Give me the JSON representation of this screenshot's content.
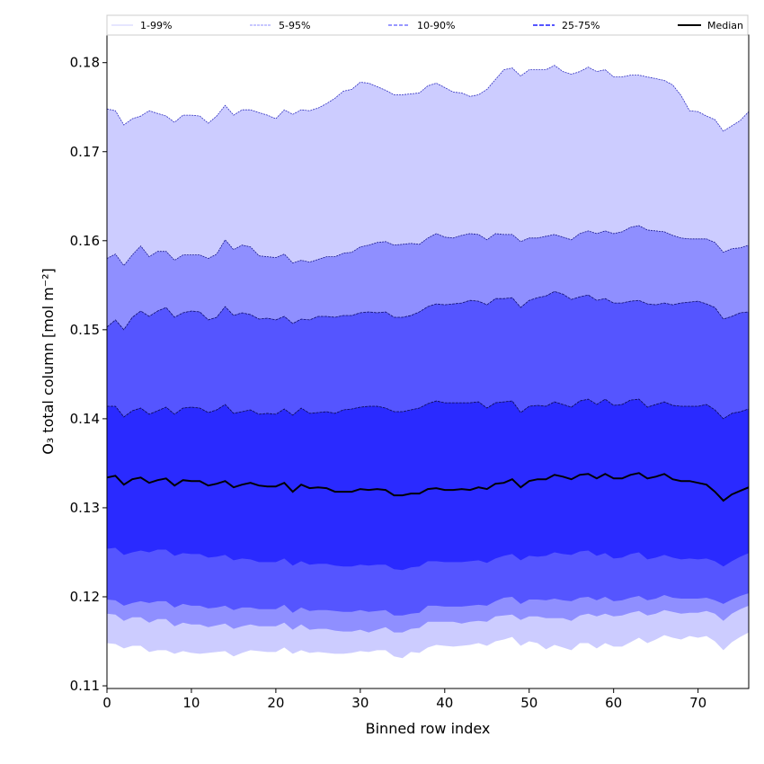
{
  "chart_data": {
    "type": "area",
    "xlabel": "Binned row index",
    "ylabel": "O₃ total column [mol m⁻²]",
    "xlim": [
      0,
      76
    ],
    "ylim": [
      0.1097,
      0.1831
    ],
    "xticks": [
      0,
      10,
      20,
      30,
      40,
      50,
      60,
      70
    ],
    "yticks": [
      0.11,
      0.12,
      0.13,
      0.14,
      0.15,
      0.16,
      0.17,
      0.18
    ],
    "ytick_labels": [
      "0.11",
      "0.12",
      "0.13",
      "0.14",
      "0.15",
      "0.16",
      "0.17",
      "0.18"
    ],
    "legend_position": "top",
    "legend": [
      "1-99%",
      "5-95%",
      "10-90%",
      "25-75%",
      "Median"
    ],
    "colors": {
      "band_1_99": "#ccccff",
      "band_5_95": "#8f8fff",
      "band_10_90": "#5555ff",
      "band_25_75": "#2a2aff",
      "median": "#000000",
      "edge": "#2020a0"
    },
    "percentiles": {
      "p1": [
        0.1148,
        0.1147,
        0.1142,
        0.1145,
        0.1145,
        0.1138,
        0.114,
        0.114,
        0.1136,
        0.1139,
        0.1137,
        0.1136,
        0.1137,
        0.1138,
        0.1139,
        0.1133,
        0.1137,
        0.114,
        0.1139,
        0.1138,
        0.1138,
        0.1143,
        0.1136,
        0.114,
        0.1137,
        0.1138,
        0.1137,
        0.1136,
        0.1136,
        0.1137,
        0.1139,
        0.1138,
        0.114,
        0.114,
        0.1133,
        0.1131,
        0.1138,
        0.1137,
        0.1143,
        0.1146,
        0.1145,
        0.1144,
        0.1145,
        0.1146,
        0.1148,
        0.1145,
        0.115,
        0.1152,
        0.1155,
        0.1145,
        0.115,
        0.1148,
        0.1141,
        0.1146,
        0.1143,
        0.114,
        0.1148,
        0.1148,
        0.1142,
        0.1148,
        0.1144,
        0.1144,
        0.1149,
        0.1154,
        0.1148,
        0.1152,
        0.1157,
        0.1154,
        0.1152,
        0.1156,
        0.1154,
        0.1156,
        0.115,
        0.114,
        0.1149,
        0.1155,
        0.116
      ],
      "p5": [
        0.1181,
        0.118,
        0.1173,
        0.1177,
        0.1177,
        0.1171,
        0.1175,
        0.1175,
        0.1167,
        0.1171,
        0.1169,
        0.1169,
        0.1166,
        0.1168,
        0.117,
        0.1164,
        0.1167,
        0.1169,
        0.1167,
        0.1167,
        0.1167,
        0.1171,
        0.1163,
        0.1169,
        0.1163,
        0.1164,
        0.1164,
        0.1162,
        0.1161,
        0.1161,
        0.1163,
        0.116,
        0.1163,
        0.1166,
        0.116,
        0.116,
        0.1164,
        0.1165,
        0.1172,
        0.1172,
        0.1172,
        0.1172,
        0.117,
        0.1172,
        0.1173,
        0.1172,
        0.1178,
        0.1179,
        0.118,
        0.1174,
        0.1178,
        0.1178,
        0.1176,
        0.1176,
        0.1176,
        0.1173,
        0.1179,
        0.1181,
        0.1178,
        0.1181,
        0.1178,
        0.1179,
        0.1182,
        0.1184,
        0.1179,
        0.1181,
        0.1185,
        0.1183,
        0.1181,
        0.1182,
        0.1182,
        0.1184,
        0.1181,
        0.1173,
        0.1181,
        0.1186,
        0.119
      ],
      "p10": [
        0.1197,
        0.1196,
        0.119,
        0.1193,
        0.1195,
        0.1193,
        0.1195,
        0.1195,
        0.1188,
        0.1192,
        0.119,
        0.119,
        0.1187,
        0.1188,
        0.119,
        0.1185,
        0.1188,
        0.1188,
        0.1186,
        0.1186,
        0.1186,
        0.1191,
        0.1182,
        0.1188,
        0.1184,
        0.1185,
        0.1185,
        0.1184,
        0.1183,
        0.1183,
        0.1185,
        0.1183,
        0.1184,
        0.1185,
        0.1179,
        0.1179,
        0.1181,
        0.1182,
        0.119,
        0.119,
        0.1189,
        0.1189,
        0.1189,
        0.119,
        0.1191,
        0.119,
        0.1195,
        0.1199,
        0.12,
        0.1192,
        0.1197,
        0.1197,
        0.1196,
        0.1198,
        0.1196,
        0.1195,
        0.1199,
        0.12,
        0.1196,
        0.12,
        0.1195,
        0.1196,
        0.1199,
        0.1201,
        0.1196,
        0.1198,
        0.1202,
        0.1199,
        0.1198,
        0.1198,
        0.1198,
        0.1199,
        0.1196,
        0.1192,
        0.1197,
        0.1201,
        0.1204
      ],
      "p25": [
        0.1254,
        0.1255,
        0.1247,
        0.125,
        0.1252,
        0.125,
        0.1253,
        0.1253,
        0.1246,
        0.1249,
        0.1248,
        0.1248,
        0.1244,
        0.1245,
        0.1247,
        0.1241,
        0.1243,
        0.1242,
        0.1239,
        0.1239,
        0.1239,
        0.1243,
        0.1235,
        0.124,
        0.1236,
        0.1237,
        0.1237,
        0.1235,
        0.1234,
        0.1234,
        0.1236,
        0.1235,
        0.1236,
        0.1236,
        0.1231,
        0.123,
        0.1233,
        0.1234,
        0.124,
        0.124,
        0.1239,
        0.1239,
        0.1239,
        0.124,
        0.1241,
        0.1238,
        0.1243,
        0.1246,
        0.1248,
        0.1241,
        0.1246,
        0.1245,
        0.1246,
        0.125,
        0.1248,
        0.1247,
        0.1251,
        0.1252,
        0.1246,
        0.1249,
        0.1243,
        0.1244,
        0.1248,
        0.125,
        0.1242,
        0.1244,
        0.1247,
        0.1244,
        0.1242,
        0.1243,
        0.1242,
        0.1243,
        0.124,
        0.1234,
        0.124,
        0.1245,
        0.1249
      ],
      "p50": [
        0.1334,
        0.1336,
        0.1326,
        0.1332,
        0.1334,
        0.1328,
        0.1331,
        0.1333,
        0.1325,
        0.1331,
        0.133,
        0.133,
        0.1325,
        0.1327,
        0.133,
        0.1323,
        0.1326,
        0.1328,
        0.1325,
        0.1324,
        0.1324,
        0.1328,
        0.1318,
        0.1326,
        0.1322,
        0.1323,
        0.1322,
        0.1318,
        0.1318,
        0.1318,
        0.1321,
        0.132,
        0.1321,
        0.132,
        0.1314,
        0.1314,
        0.1316,
        0.1316,
        0.1321,
        0.1322,
        0.132,
        0.132,
        0.1321,
        0.132,
        0.1323,
        0.1321,
        0.1327,
        0.1328,
        0.1332,
        0.1323,
        0.133,
        0.1332,
        0.1332,
        0.1337,
        0.1335,
        0.1332,
        0.1337,
        0.1338,
        0.1333,
        0.1338,
        0.1333,
        0.1333,
        0.1337,
        0.1339,
        0.1333,
        0.1335,
        0.1338,
        0.1332,
        0.133,
        0.133,
        0.1328,
        0.1326,
        0.1318,
        0.1308,
        0.1315,
        0.1319,
        0.1323
      ],
      "p75": [
        0.1414,
        0.1414,
        0.1402,
        0.1409,
        0.1412,
        0.1405,
        0.1409,
        0.1413,
        0.1405,
        0.1412,
        0.1413,
        0.1412,
        0.1407,
        0.141,
        0.1416,
        0.1406,
        0.1408,
        0.141,
        0.1405,
        0.1406,
        0.1405,
        0.1411,
        0.1404,
        0.1412,
        0.1406,
        0.1407,
        0.1408,
        0.1406,
        0.141,
        0.1411,
        0.1413,
        0.1414,
        0.1414,
        0.1412,
        0.1408,
        0.1408,
        0.141,
        0.1412,
        0.1417,
        0.142,
        0.1418,
        0.1418,
        0.1418,
        0.1418,
        0.1419,
        0.1412,
        0.1418,
        0.1419,
        0.142,
        0.1407,
        0.1414,
        0.1415,
        0.1414,
        0.1419,
        0.1416,
        0.1413,
        0.142,
        0.1422,
        0.1416,
        0.1422,
        0.1415,
        0.1416,
        0.1421,
        0.1422,
        0.1413,
        0.1416,
        0.1419,
        0.1415,
        0.1414,
        0.1414,
        0.1414,
        0.1416,
        0.141,
        0.14,
        0.1406,
        0.1408,
        0.1411
      ],
      "p90": [
        0.1503,
        0.1511,
        0.15,
        0.1514,
        0.1521,
        0.1515,
        0.1521,
        0.1525,
        0.1514,
        0.1519,
        0.1521,
        0.152,
        0.1511,
        0.1514,
        0.1526,
        0.1516,
        0.1519,
        0.1517,
        0.1512,
        0.1513,
        0.1511,
        0.1515,
        0.1507,
        0.1512,
        0.1511,
        0.1515,
        0.1515,
        0.1514,
        0.1516,
        0.1516,
        0.1519,
        0.152,
        0.1519,
        0.152,
        0.1514,
        0.1514,
        0.1516,
        0.152,
        0.1526,
        0.1529,
        0.1528,
        0.1529,
        0.153,
        0.1533,
        0.1532,
        0.1528,
        0.1535,
        0.1535,
        0.1536,
        0.1525,
        0.1533,
        0.1536,
        0.1538,
        0.1543,
        0.154,
        0.1534,
        0.1537,
        0.1539,
        0.1533,
        0.1535,
        0.153,
        0.153,
        0.1532,
        0.1533,
        0.1529,
        0.1528,
        0.153,
        0.1528,
        0.153,
        0.1531,
        0.1532,
        0.1529,
        0.1525,
        0.1512,
        0.1515,
        0.1519,
        0.152
      ],
      "p95": [
        0.158,
        0.1585,
        0.1572,
        0.1584,
        0.1594,
        0.1582,
        0.1588,
        0.1588,
        0.1578,
        0.1584,
        0.1584,
        0.1584,
        0.158,
        0.1585,
        0.1601,
        0.159,
        0.1595,
        0.1593,
        0.1583,
        0.1582,
        0.1581,
        0.1585,
        0.1575,
        0.1578,
        0.1576,
        0.1579,
        0.1582,
        0.1582,
        0.1586,
        0.1587,
        0.1593,
        0.1595,
        0.1598,
        0.1599,
        0.1595,
        0.1596,
        0.1597,
        0.1596,
        0.1603,
        0.1608,
        0.1604,
        0.1603,
        0.1606,
        0.1608,
        0.1607,
        0.1601,
        0.1608,
        0.1607,
        0.1607,
        0.1599,
        0.1603,
        0.1603,
        0.1605,
        0.1607,
        0.1604,
        0.1601,
        0.1608,
        0.1611,
        0.1608,
        0.1611,
        0.1608,
        0.161,
        0.1615,
        0.1617,
        0.1612,
        0.1611,
        0.161,
        0.1606,
        0.1603,
        0.1602,
        0.1602,
        0.1602,
        0.1598,
        0.1587,
        0.1591,
        0.1592,
        0.1595
      ],
      "p99": [
        0.1748,
        0.1746,
        0.173,
        0.1737,
        0.174,
        0.1746,
        0.1743,
        0.174,
        0.1733,
        0.1741,
        0.1741,
        0.174,
        0.1732,
        0.174,
        0.1752,
        0.1741,
        0.1747,
        0.1747,
        0.1744,
        0.1741,
        0.1737,
        0.1747,
        0.1742,
        0.1747,
        0.1746,
        0.1749,
        0.1754,
        0.176,
        0.1768,
        0.177,
        0.1778,
        0.1777,
        0.1773,
        0.1769,
        0.1764,
        0.1764,
        0.1765,
        0.1766,
        0.1774,
        0.1777,
        0.1772,
        0.1767,
        0.1766,
        0.1762,
        0.1764,
        0.177,
        0.1781,
        0.1792,
        0.1794,
        0.1785,
        0.1792,
        0.1792,
        0.1792,
        0.1797,
        0.179,
        0.1787,
        0.179,
        0.1795,
        0.179,
        0.1792,
        0.1784,
        0.1784,
        0.1786,
        0.1786,
        0.1784,
        0.1782,
        0.178,
        0.1775,
        0.1763,
        0.1746,
        0.1745,
        0.174,
        0.1736,
        0.1723,
        0.1729,
        0.1735,
        0.1745
      ]
    }
  }
}
